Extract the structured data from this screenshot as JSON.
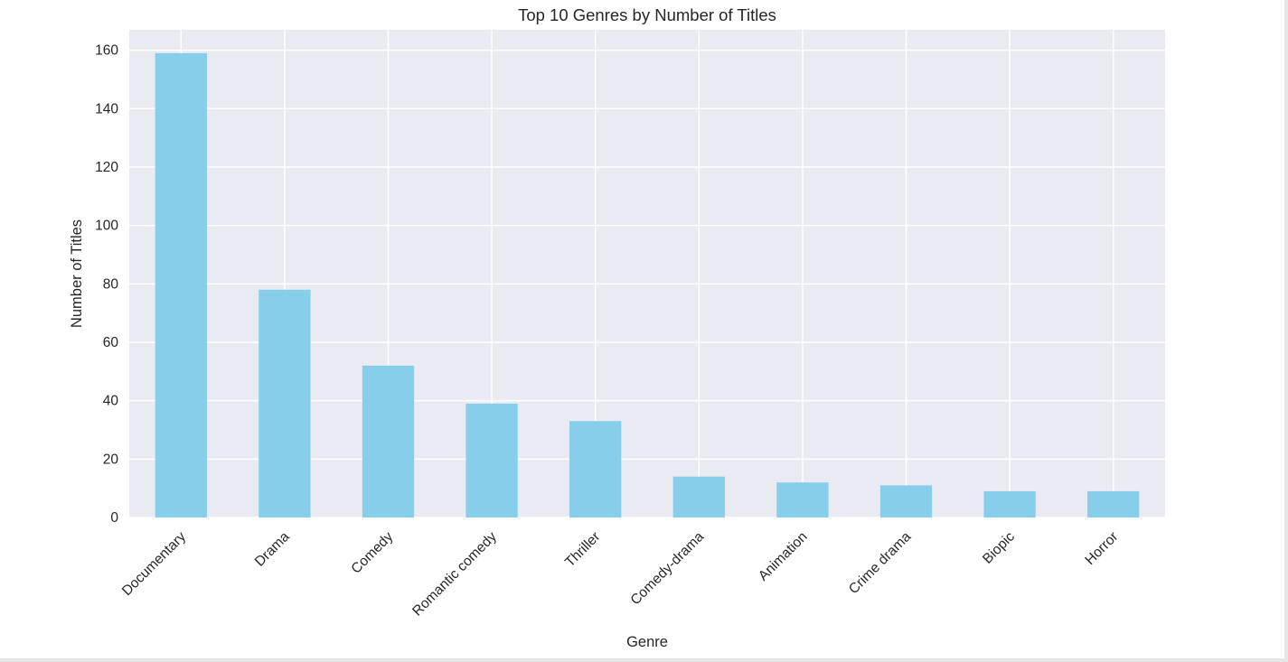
{
  "chart_data": {
    "type": "bar",
    "title": "Top 10 Genres by Number of Titles",
    "xlabel": "Genre",
    "ylabel": "Number of Titles",
    "categories": [
      "Documentary",
      "Drama",
      "Comedy",
      "Romantic comedy",
      "Thriller",
      "Comedy-drama",
      "Animation",
      "Crime drama",
      "Biopic",
      "Horror"
    ],
    "values": [
      159,
      78,
      52,
      39,
      33,
      14,
      12,
      11,
      9,
      9
    ],
    "ylim": [
      0,
      167
    ],
    "yticks": [
      0,
      20,
      40,
      60,
      80,
      100,
      120,
      140,
      160
    ],
    "grid": true,
    "colors": {
      "bar": "#87ceeb",
      "plot_background": "#eaeaf2",
      "grid": "#ffffff",
      "text": "#262626"
    }
  }
}
